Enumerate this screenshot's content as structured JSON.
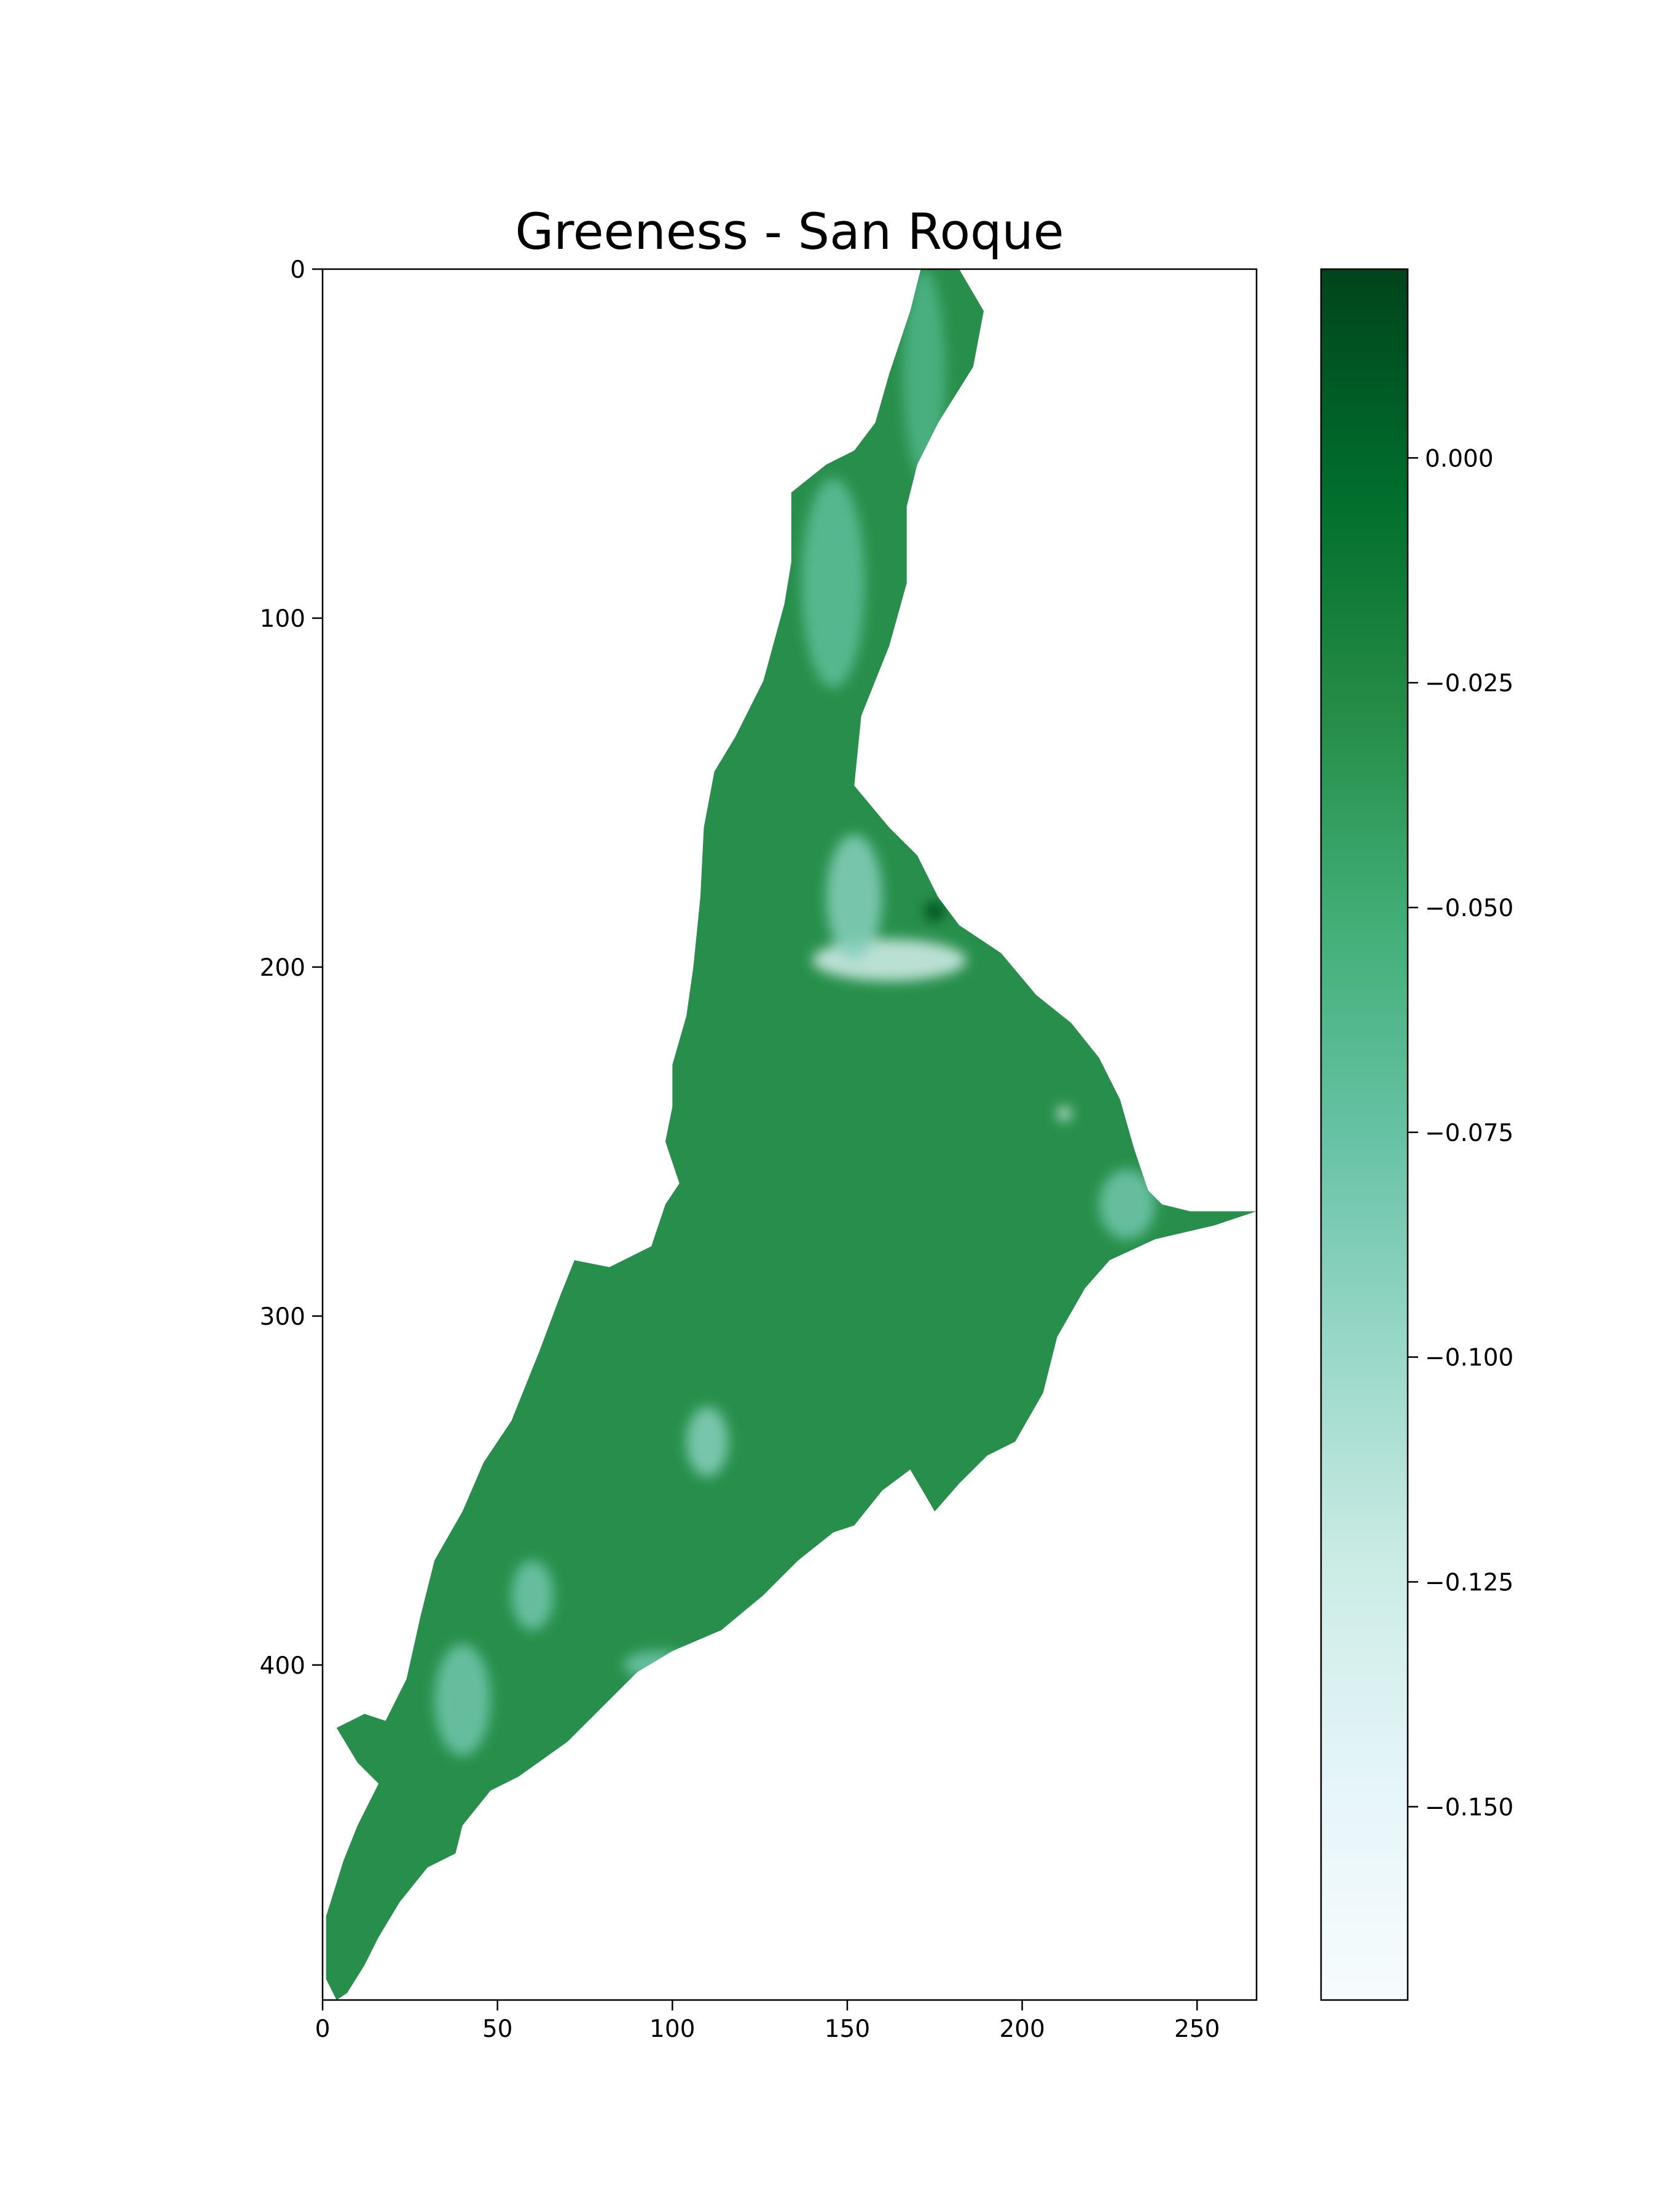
{
  "chart_data": {
    "type": "heatmap",
    "title": "Greeness - San Roque",
    "xlabel": "",
    "ylabel": "",
    "x_ticks": [
      0,
      50,
      100,
      150,
      200,
      250
    ],
    "y_ticks": [
      0,
      100,
      200,
      300,
      400
    ],
    "xlim": [
      0,
      267
    ],
    "ylim": [
      496,
      0
    ],
    "colormap": "BuGn",
    "colorbar": {
      "ticks": [
        0.0,
        -0.025,
        -0.05,
        -0.075,
        -0.1,
        -0.125,
        -0.15
      ],
      "tick_labels": [
        "0.000",
        "−0.025",
        "−0.050",
        "−0.075",
        "−0.100",
        "−0.125",
        "−0.150"
      ],
      "range": [
        -0.1715,
        0.021
      ]
    },
    "region": {
      "name": "San Roque",
      "dominant_value": -0.03,
      "outline": [
        [
          171,
          0
        ],
        [
          182,
          0
        ],
        [
          189,
          12
        ],
        [
          186,
          28
        ],
        [
          176,
          44
        ],
        [
          170,
          56
        ],
        [
          167,
          68
        ],
        [
          167,
          90
        ],
        [
          162,
          108
        ],
        [
          154,
          128
        ],
        [
          152,
          148
        ],
        [
          162,
          160
        ],
        [
          170,
          168
        ],
        [
          176,
          180
        ],
        [
          182,
          188
        ],
        [
          194,
          196
        ],
        [
          204,
          208
        ],
        [
          214,
          216
        ],
        [
          222,
          226
        ],
        [
          228,
          238
        ],
        [
          232,
          252
        ],
        [
          236,
          264
        ],
        [
          240,
          268
        ],
        [
          248,
          270
        ],
        [
          262,
          270
        ],
        [
          267,
          270
        ],
        [
          255,
          274
        ],
        [
          238,
          278
        ],
        [
          225,
          284
        ],
        [
          218,
          292
        ],
        [
          210,
          306
        ],
        [
          206,
          322
        ],
        [
          198,
          336
        ],
        [
          190,
          340
        ],
        [
          182,
          348
        ],
        [
          175,
          356
        ],
        [
          168,
          344
        ],
        [
          160,
          350
        ],
        [
          152,
          360
        ],
        [
          146,
          362
        ],
        [
          136,
          370
        ],
        [
          126,
          380
        ],
        [
          114,
          390
        ],
        [
          100,
          396
        ],
        [
          90,
          402
        ],
        [
          80,
          412
        ],
        [
          70,
          422
        ],
        [
          56,
          432
        ],
        [
          48,
          436
        ],
        [
          40,
          446
        ],
        [
          38,
          454
        ],
        [
          30,
          458
        ],
        [
          22,
          468
        ],
        [
          16,
          478
        ],
        [
          12,
          486
        ],
        [
          7,
          494
        ],
        [
          4,
          496
        ],
        [
          1,
          490
        ],
        [
          1,
          472
        ],
        [
          6,
          456
        ],
        [
          10,
          446
        ],
        [
          16,
          434
        ],
        [
          10,
          428
        ],
        [
          4,
          418
        ],
        [
          12,
          414
        ],
        [
          18,
          416
        ],
        [
          24,
          404
        ],
        [
          28,
          386
        ],
        [
          32,
          370
        ],
        [
          40,
          356
        ],
        [
          46,
          342
        ],
        [
          54,
          330
        ],
        [
          62,
          310
        ],
        [
          68,
          294
        ],
        [
          72,
          284
        ],
        [
          82,
          286
        ],
        [
          94,
          280
        ],
        [
          98,
          268
        ],
        [
          102,
          262
        ],
        [
          98,
          250
        ],
        [
          100,
          240
        ],
        [
          100,
          228
        ],
        [
          104,
          214
        ],
        [
          106,
          200
        ],
        [
          108,
          180
        ],
        [
          109,
          160
        ],
        [
          112,
          144
        ],
        [
          118,
          134
        ],
        [
          126,
          118
        ],
        [
          132,
          96
        ],
        [
          134,
          84
        ],
        [
          134,
          64
        ],
        [
          144,
          56
        ],
        [
          152,
          52
        ],
        [
          158,
          44
        ],
        [
          162,
          30
        ],
        [
          168,
          12
        ],
        [
          171,
          0
        ]
      ],
      "light_patches": [
        {
          "cx": 172,
          "cy": 30,
          "rx": 6,
          "ry": 30,
          "value": -0.06
        },
        {
          "cx": 146,
          "cy": 90,
          "rx": 9,
          "ry": 30,
          "value": -0.07
        },
        {
          "cx": 162,
          "cy": 198,
          "rx": 22,
          "ry": 6,
          "value": -0.13
        },
        {
          "cx": 152,
          "cy": 180,
          "rx": 8,
          "ry": 18,
          "value": -0.09
        },
        {
          "cx": 40,
          "cy": 410,
          "rx": 8,
          "ry": 16,
          "value": -0.08
        },
        {
          "cx": 60,
          "cy": 380,
          "rx": 6,
          "ry": 10,
          "value": -0.08
        },
        {
          "cx": 110,
          "cy": 336,
          "rx": 6,
          "ry": 10,
          "value": -0.09
        },
        {
          "cx": 230,
          "cy": 268,
          "rx": 8,
          "ry": 10,
          "value": -0.08
        },
        {
          "cx": 96,
          "cy": 400,
          "rx": 10,
          "ry": 4,
          "value": -0.08
        },
        {
          "cx": 212,
          "cy": 242,
          "rx": 2,
          "ry": 2,
          "value": -0.14
        }
      ],
      "dark_spot": {
        "cx": 175,
        "cy": 184,
        "rx": 3,
        "ry": 3,
        "value": 0.01
      }
    }
  }
}
